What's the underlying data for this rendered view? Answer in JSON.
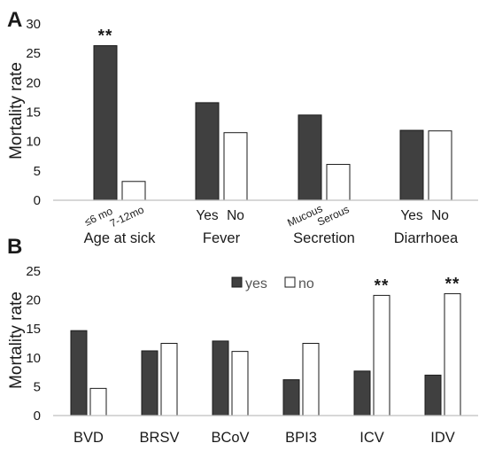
{
  "colors": {
    "yes": "#404040",
    "no": "#ffffff",
    "stroke": "#1a1a1a",
    "axis": "#bfbfbf"
  },
  "chart_data": [
    {
      "type": "bar",
      "panel_label": "A",
      "ylabel": "Mortality rate",
      "ylim": [
        0,
        30
      ],
      "yticks": [
        0,
        5,
        10,
        15,
        20,
        25,
        30
      ],
      "groups": [
        {
          "name": "Age at sick",
          "bars": [
            {
              "label": "≤6 mo",
              "value": 26.3,
              "series": "yes",
              "annotation": "**"
            },
            {
              "label": "7-12mo",
              "value": 3.2,
              "series": "no",
              "annotation": ""
            }
          ]
        },
        {
          "name": "Fever",
          "bars": [
            {
              "label": "Yes",
              "value": 16.6,
              "series": "yes",
              "annotation": ""
            },
            {
              "label": "No",
              "value": 11.5,
              "series": "no",
              "annotation": ""
            }
          ]
        },
        {
          "name": "Secretion",
          "bars": [
            {
              "label": "Mucous",
              "value": 14.5,
              "series": "yes",
              "annotation": ""
            },
            {
              "label": "Serous",
              "value": 6.1,
              "series": "no",
              "annotation": ""
            }
          ]
        },
        {
          "name": "Diarrhoea",
          "bars": [
            {
              "label": "Yes",
              "value": 11.9,
              "series": "yes",
              "annotation": ""
            },
            {
              "label": "No",
              "value": 11.8,
              "series": "no",
              "annotation": ""
            }
          ]
        }
      ]
    },
    {
      "type": "bar",
      "panel_label": "B",
      "ylabel": "Mortality rate",
      "ylim": [
        0,
        25
      ],
      "yticks": [
        0,
        5,
        10,
        15,
        20,
        25
      ],
      "legend": [
        {
          "label": "yes",
          "series": "yes"
        },
        {
          "label": "no",
          "series": "no"
        }
      ],
      "legend_position": "top-center",
      "categories": [
        "BVD",
        "BRSV",
        "BCoV",
        "BPI3",
        "ICV",
        "IDV"
      ],
      "series": [
        {
          "name": "yes",
          "values": [
            14.7,
            11.2,
            12.9,
            6.2,
            7.7,
            7.0
          ]
        },
        {
          "name": "no",
          "values": [
            4.7,
            12.5,
            11.1,
            12.5,
            20.8,
            21.1
          ]
        }
      ],
      "annotations": [
        {
          "category": "ICV",
          "text": "**"
        },
        {
          "category": "IDV",
          "text": "**"
        }
      ]
    }
  ]
}
